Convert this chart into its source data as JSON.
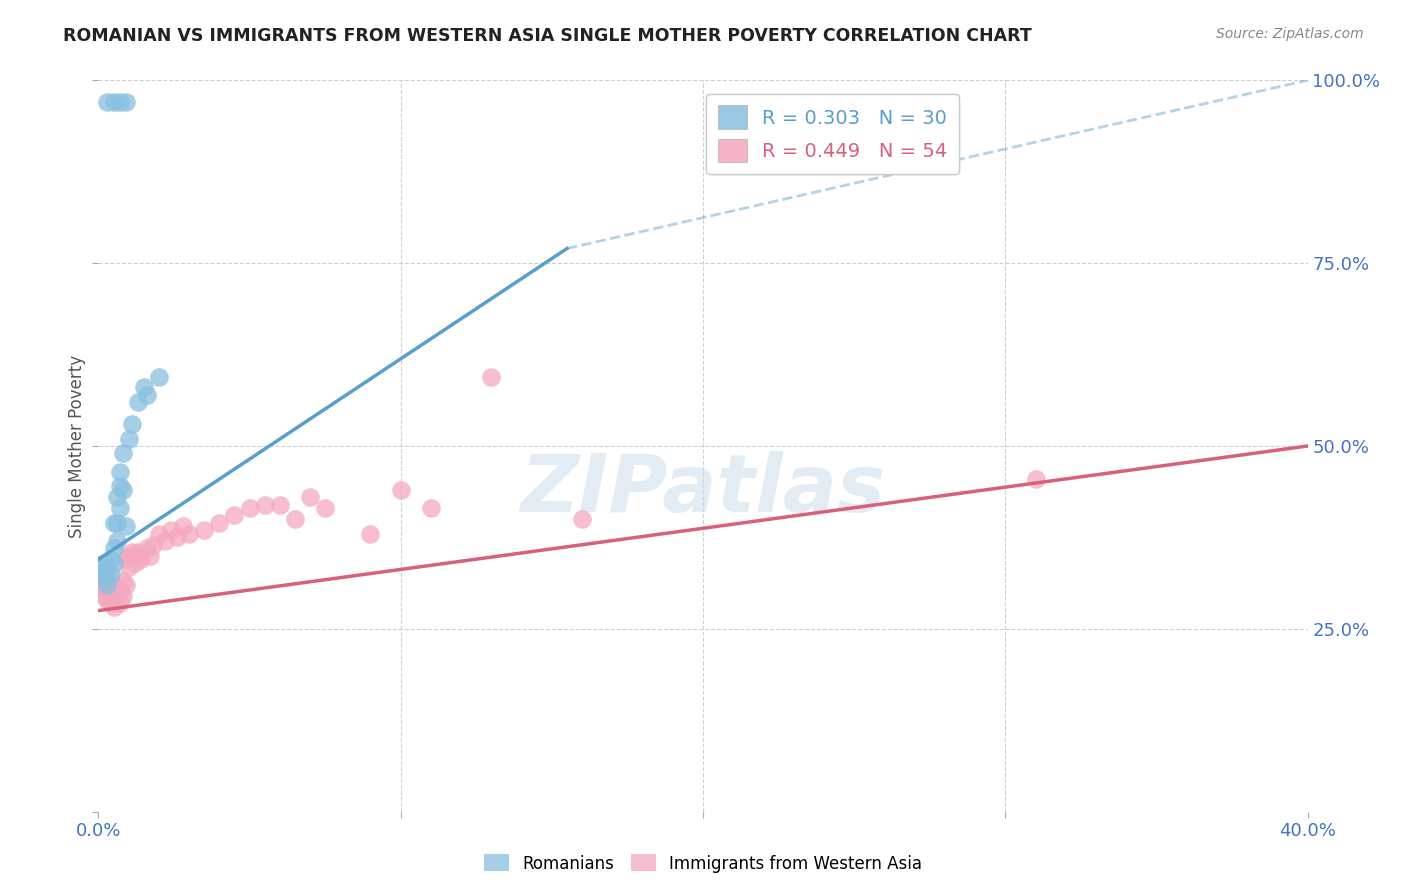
{
  "title": "ROMANIAN VS IMMIGRANTS FROM WESTERN ASIA SINGLE MOTHER POVERTY CORRELATION CHART",
  "source": "Source: ZipAtlas.com",
  "ylabel": "Single Mother Poverty",
  "xlim": [
    0.0,
    0.4
  ],
  "ylim": [
    0.0,
    1.0
  ],
  "legend_blue_label": "R = 0.303   N = 30",
  "legend_pink_label": "R = 0.449   N = 54",
  "legend_label_romanians": "Romanians",
  "legend_label_immigrants": "Immigrants from Western Asia",
  "blue_color": "#89bfdf",
  "pink_color": "#f4a8be",
  "blue_line_color": "#5a9ec9",
  "pink_line_color": "#d9607a",
  "blue_scatter": [
    [
      0.001,
      0.335
    ],
    [
      0.001,
      0.325
    ],
    [
      0.002,
      0.34
    ],
    [
      0.002,
      0.32
    ],
    [
      0.003,
      0.33
    ],
    [
      0.003,
      0.31
    ],
    [
      0.004,
      0.345
    ],
    [
      0.004,
      0.325
    ],
    [
      0.005,
      0.395
    ],
    [
      0.005,
      0.36
    ],
    [
      0.005,
      0.34
    ],
    [
      0.006,
      0.43
    ],
    [
      0.006,
      0.395
    ],
    [
      0.006,
      0.37
    ],
    [
      0.007,
      0.465
    ],
    [
      0.007,
      0.445
    ],
    [
      0.007,
      0.415
    ],
    [
      0.008,
      0.49
    ],
    [
      0.008,
      0.44
    ],
    [
      0.009,
      0.39
    ],
    [
      0.01,
      0.51
    ],
    [
      0.011,
      0.53
    ],
    [
      0.013,
      0.56
    ],
    [
      0.015,
      0.58
    ],
    [
      0.016,
      0.57
    ],
    [
      0.02,
      0.595
    ],
    [
      0.003,
      0.97
    ],
    [
      0.005,
      0.97
    ],
    [
      0.007,
      0.97
    ],
    [
      0.009,
      0.97
    ]
  ],
  "pink_scatter": [
    [
      0.001,
      0.315
    ],
    [
      0.001,
      0.31
    ],
    [
      0.001,
      0.305
    ],
    [
      0.002,
      0.31
    ],
    [
      0.002,
      0.305
    ],
    [
      0.002,
      0.295
    ],
    [
      0.003,
      0.305
    ],
    [
      0.003,
      0.3
    ],
    [
      0.003,
      0.29
    ],
    [
      0.004,
      0.31
    ],
    [
      0.004,
      0.3
    ],
    [
      0.004,
      0.285
    ],
    [
      0.005,
      0.31
    ],
    [
      0.005,
      0.295
    ],
    [
      0.005,
      0.28
    ],
    [
      0.006,
      0.305
    ],
    [
      0.006,
      0.29
    ],
    [
      0.007,
      0.3
    ],
    [
      0.007,
      0.285
    ],
    [
      0.008,
      0.315
    ],
    [
      0.008,
      0.295
    ],
    [
      0.009,
      0.31
    ],
    [
      0.009,
      0.345
    ],
    [
      0.01,
      0.35
    ],
    [
      0.01,
      0.335
    ],
    [
      0.011,
      0.355
    ],
    [
      0.012,
      0.35
    ],
    [
      0.012,
      0.34
    ],
    [
      0.013,
      0.355
    ],
    [
      0.014,
      0.345
    ],
    [
      0.016,
      0.36
    ],
    [
      0.017,
      0.35
    ],
    [
      0.018,
      0.365
    ],
    [
      0.02,
      0.38
    ],
    [
      0.022,
      0.37
    ],
    [
      0.024,
      0.385
    ],
    [
      0.026,
      0.375
    ],
    [
      0.028,
      0.39
    ],
    [
      0.03,
      0.38
    ],
    [
      0.035,
      0.385
    ],
    [
      0.04,
      0.395
    ],
    [
      0.045,
      0.405
    ],
    [
      0.05,
      0.415
    ],
    [
      0.055,
      0.42
    ],
    [
      0.06,
      0.42
    ],
    [
      0.065,
      0.4
    ],
    [
      0.07,
      0.43
    ],
    [
      0.075,
      0.415
    ],
    [
      0.09,
      0.38
    ],
    [
      0.1,
      0.44
    ],
    [
      0.11,
      0.415
    ],
    [
      0.13,
      0.595
    ],
    [
      0.16,
      0.4
    ],
    [
      0.31,
      0.455
    ]
  ],
  "blue_line_solid": {
    "x0": 0.0,
    "y0": 0.345,
    "x1": 0.155,
    "y1": 0.77
  },
  "blue_line_dashed": {
    "x0": 0.155,
    "y0": 0.77,
    "x1": 0.4,
    "y1": 1.0
  },
  "pink_line": {
    "x0": 0.0,
    "y0": 0.275,
    "x1": 0.4,
    "y1": 0.5
  },
  "watermark": "ZIPatlas",
  "background_color": "#ffffff",
  "grid_color": "#d0d0d0"
}
